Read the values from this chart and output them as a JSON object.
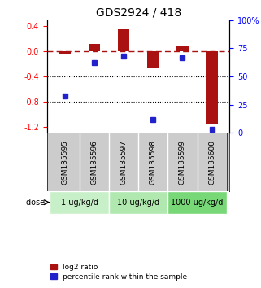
{
  "title": "GDS2924 / 418",
  "samples": [
    "GSM135595",
    "GSM135596",
    "GSM135597",
    "GSM135598",
    "GSM135599",
    "GSM135600"
  ],
  "log2_ratio": [
    -0.03,
    0.12,
    0.36,
    -0.27,
    0.09,
    -1.15
  ],
  "percentile_rank": [
    33,
    62,
    68,
    12,
    67,
    3
  ],
  "dose_groups": [
    {
      "label": "1 ug/kg/d",
      "samples": [
        0,
        1
      ],
      "color": "#c8f0c8"
    },
    {
      "label": "10 ug/kg/d",
      "samples": [
        2,
        3
      ],
      "color": "#a0e0a0"
    },
    {
      "label": "1000 ug/kg/d",
      "samples": [
        4,
        5
      ],
      "color": "#70c870"
    }
  ],
  "bar_color": "#aa1111",
  "dot_color": "#2222cc",
  "ylim_left": [
    -1.3,
    0.5
  ],
  "ylim_right": [
    0,
    100
  ],
  "yticks_left": [
    -1.2,
    -0.8,
    -0.4,
    0.0,
    0.4
  ],
  "yticks_right": [
    0,
    25,
    50,
    75,
    100
  ],
  "hline_y": 0.0,
  "dotted_lines": [
    -0.4,
    -0.8
  ],
  "background_color": "#ffffff",
  "plot_bg": "#ffffff",
  "sample_area_color": "#cccccc",
  "dose_area_colors": [
    "#c8f0c8",
    "#b0e8b0",
    "#78d878"
  ],
  "bar_width": 0.4
}
